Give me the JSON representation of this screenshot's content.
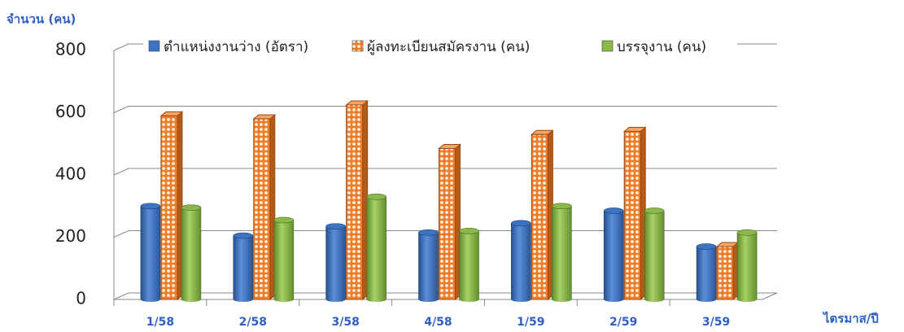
{
  "chart_data": {
    "type": "bar3d",
    "y_label": "จำนวน (คน)",
    "x_label": "ไตรมาส/ปี",
    "categories": [
      "1/58",
      "2/58",
      "3/58",
      "4/58",
      "1/59",
      "2/59",
      "3/59"
    ],
    "series": [
      {
        "name": "ตำแหน่งงานว่าง (อัตรา)",
        "color": "#3d73c3",
        "values": [
          300,
          205,
          235,
          215,
          245,
          285,
          170
        ]
      },
      {
        "name": "ผู้ลงทะเบียนสมัครงาน (คน)",
        "color": "#f07f2c",
        "values": [
          590,
          580,
          625,
          485,
          530,
          540,
          170
        ]
      },
      {
        "name": "บรรจุงาน (คน)",
        "color": "#8bb84a",
        "values": [
          295,
          255,
          330,
          220,
          300,
          285,
          215
        ]
      }
    ],
    "ylim": [
      0,
      800
    ],
    "yticks": [
      0,
      200,
      400,
      600,
      800
    ],
    "grid": true
  }
}
